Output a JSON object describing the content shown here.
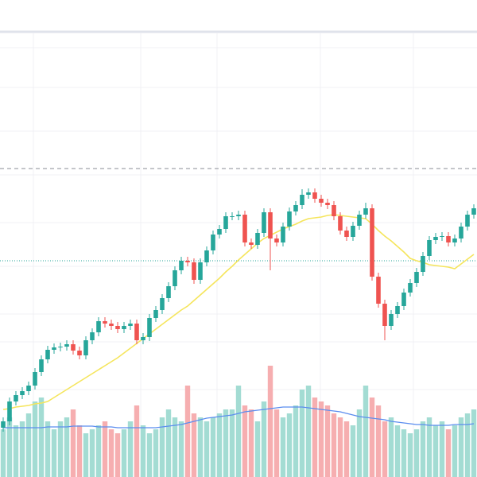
{
  "chart_data": {
    "type": "candlestick",
    "ylim": [
      0,
      600
    ],
    "y2lim": [
      0,
      600
    ],
    "grid": true,
    "up_color": "#26a69a",
    "down_color": "#ef5350",
    "volume_up_color": "#a3dcd3",
    "volume_down_color": "#f6aeb0",
    "open": [
      62,
      70,
      95,
      103,
      108,
      115,
      132,
      148,
      160,
      163,
      164,
      167,
      159,
      153,
      172,
      182,
      196,
      193,
      190,
      186,
      190,
      193,
      172,
      176,
      200,
      210,
      225,
      240,
      260,
      272,
      270,
      248,
      270,
      285,
      305,
      312,
      328,
      328,
      330,
      295,
      292,
      307,
      333,
      300,
      295,
      315,
      334,
      342,
      355,
      358,
      350,
      345,
      342,
      328,
      310,
      302,
      316,
      330,
      338,
      252,
      218,
      190,
      205,
      215,
      232,
      244,
      258,
      278,
      298,
      302,
      303,
      295,
      300,
      315,
      330
    ],
    "high": [
      75,
      100,
      108,
      113,
      120,
      137,
      153,
      165,
      168,
      169,
      172,
      172,
      164,
      177,
      187,
      201,
      201,
      198,
      195,
      195,
      198,
      198,
      181,
      205,
      215,
      230,
      245,
      265,
      277,
      277,
      275,
      275,
      290,
      310,
      317,
      333,
      333,
      335,
      335,
      300,
      312,
      338,
      338,
      305,
      320,
      339,
      347,
      362,
      363,
      363,
      355,
      350,
      347,
      333,
      315,
      321,
      335,
      345,
      343,
      257,
      223,
      210,
      220,
      237,
      249,
      263,
      283,
      303,
      307,
      308,
      308,
      305,
      320,
      335,
      343
    ],
    "low": [
      57,
      65,
      90,
      98,
      103,
      110,
      127,
      143,
      155,
      158,
      159,
      154,
      148,
      148,
      167,
      177,
      188,
      185,
      181,
      181,
      185,
      167,
      167,
      171,
      195,
      205,
      220,
      235,
      255,
      265,
      243,
      243,
      265,
      280,
      300,
      307,
      323,
      323,
      290,
      287,
      287,
      302,
      260,
      290,
      290,
      310,
      329,
      337,
      350,
      345,
      340,
      337,
      323,
      305,
      297,
      297,
      311,
      325,
      247,
      213,
      172,
      185,
      200,
      210,
      227,
      239,
      253,
      273,
      293,
      297,
      290,
      290,
      295,
      310,
      325
    ],
    "close": [
      70,
      95,
      103,
      108,
      115,
      132,
      148,
      160,
      163,
      164,
      167,
      159,
      153,
      172,
      182,
      196,
      193,
      190,
      186,
      190,
      193,
      172,
      176,
      200,
      210,
      225,
      240,
      260,
      272,
      270,
      248,
      270,
      285,
      305,
      312,
      328,
      328,
      330,
      295,
      292,
      307,
      333,
      300,
      295,
      315,
      334,
      342,
      355,
      358,
      350,
      345,
      342,
      328,
      310,
      302,
      316,
      330,
      338,
      252,
      218,
      190,
      205,
      215,
      232,
      244,
      258,
      278,
      298,
      302,
      303,
      295,
      300,
      315,
      330,
      338
    ],
    "ma": {
      "color": "#f5e55c",
      "values": [
        85,
        86,
        88,
        89,
        90,
        92,
        93,
        95,
        100,
        105,
        110,
        115,
        120,
        125,
        130,
        135,
        140,
        145,
        150,
        156,
        162,
        168,
        174,
        180,
        186,
        192,
        198,
        204,
        210,
        215,
        222,
        229,
        236,
        243,
        250,
        258,
        265,
        273,
        280,
        287,
        294,
        300,
        304,
        308,
        312,
        315,
        318,
        322,
        325,
        326,
        327,
        329,
        330,
        329,
        328,
        327,
        326,
        325,
        318,
        310,
        303,
        297,
        290,
        283,
        275,
        272,
        270,
        267,
        266,
        265,
        264,
        262,
        268,
        274,
        280
      ]
    },
    "volume": [
      60,
      75,
      65,
      70,
      80,
      95,
      100,
      70,
      60,
      70,
      75,
      85,
      65,
      55,
      60,
      65,
      70,
      60,
      55,
      60,
      70,
      90,
      65,
      55,
      60,
      75,
      85,
      75,
      70,
      115,
      80,
      75,
      70,
      75,
      80,
      85,
      85,
      115,
      90,
      85,
      70,
      95,
      140,
      85,
      75,
      80,
      90,
      110,
      115,
      100,
      95,
      90,
      80,
      75,
      70,
      65,
      85,
      115,
      100,
      90,
      70,
      75,
      65,
      60,
      55,
      60,
      70,
      75,
      65,
      70,
      60,
      65,
      75,
      80,
      85
    ],
    "volume_ma": {
      "color": "#5b8def",
      "values": [
        62,
        62,
        62,
        62,
        62,
        62,
        62,
        63,
        63,
        63,
        63,
        64,
        64,
        64,
        64,
        63,
        63,
        63,
        62,
        62,
        62,
        62,
        62,
        62,
        62,
        63,
        64,
        65,
        66,
        68,
        70,
        72,
        74,
        75,
        76,
        77,
        78,
        80,
        82,
        83,
        84,
        85,
        86,
        87,
        88,
        88,
        88,
        88,
        87,
        86,
        85,
        84,
        83,
        82,
        80,
        78,
        76,
        75,
        74,
        73,
        72,
        70,
        69,
        68,
        67,
        66,
        66,
        65,
        65,
        65,
        65,
        66,
        66,
        66,
        67
      ]
    },
    "reference_lines": [
      {
        "value": 388,
        "style": "dashed",
        "color": "#8a8d96"
      },
      {
        "value": 272,
        "style": "dotted",
        "color": "#26a69a"
      }
    ]
  }
}
